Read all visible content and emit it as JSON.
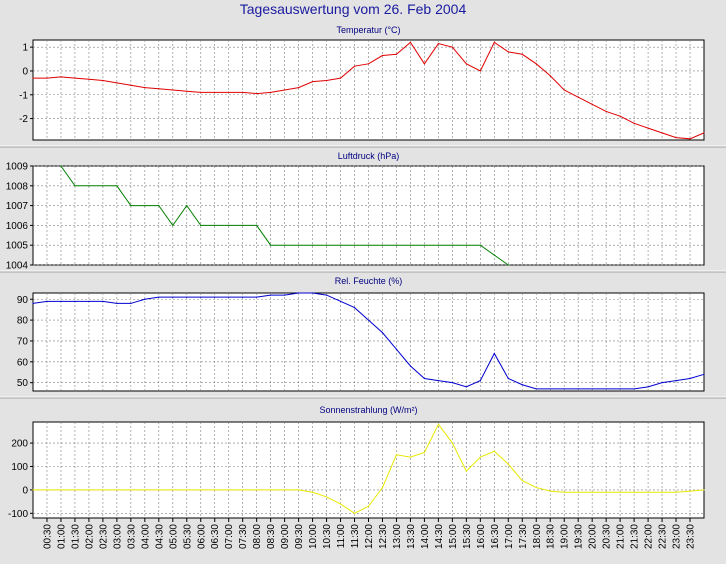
{
  "page_title": "Tagesauswertung vom 26. Feb 2004",
  "colors": {
    "background": "#e3e3e3",
    "plot_background": "#ffffff",
    "grid": "#808080",
    "title_color": "#1a1aa0",
    "temperature": "#e00000",
    "pressure": "#008000",
    "humidity": "#0000d0",
    "solar": "#e8e800"
  },
  "x_ticks": [
    "00:30",
    "01:00",
    "01:30",
    "02:00",
    "02:30",
    "03:00",
    "03:30",
    "04:00",
    "04:30",
    "05:00",
    "05:30",
    "06:00",
    "06:30",
    "07:00",
    "07:30",
    "08:00",
    "08:30",
    "09:00",
    "09:30",
    "10:00",
    "10:30",
    "11:00",
    "11:30",
    "12:00",
    "12:30",
    "13:00",
    "13:30",
    "14:00",
    "14:30",
    "15:00",
    "15:30",
    "16:00",
    "16:30",
    "17:00",
    "17:30",
    "18:00",
    "18:30",
    "19:00",
    "19:30",
    "20:00",
    "20:30",
    "21:00",
    "21:30",
    "22:00",
    "22:30",
    "23:00",
    "23:30"
  ],
  "chart_data": [
    {
      "type": "line",
      "title": "Temperatur (°C)",
      "color": "#e00000",
      "ylim": [
        -2.9,
        1.3
      ],
      "yticks": [
        -2,
        -1,
        0,
        1
      ],
      "x": [
        "00:00",
        "00:30",
        "01:00",
        "01:30",
        "02:00",
        "02:30",
        "03:00",
        "03:30",
        "04:00",
        "04:30",
        "05:00",
        "05:30",
        "06:00",
        "06:30",
        "07:00",
        "07:30",
        "08:00",
        "08:30",
        "09:00",
        "09:30",
        "10:00",
        "10:30",
        "11:00",
        "11:30",
        "12:00",
        "12:30",
        "13:00",
        "13:30",
        "14:00",
        "14:30",
        "15:00",
        "15:30",
        "16:00",
        "16:30",
        "17:00",
        "17:30",
        "18:00",
        "18:30",
        "19:00",
        "19:30",
        "20:00",
        "20:30",
        "21:00",
        "21:30",
        "22:00",
        "22:30",
        "23:00",
        "23:30",
        "24:00"
      ],
      "values": [
        -0.3,
        -0.3,
        -0.25,
        -0.3,
        -0.35,
        -0.4,
        -0.5,
        -0.6,
        -0.7,
        -0.75,
        -0.8,
        -0.85,
        -0.9,
        -0.9,
        -0.9,
        -0.9,
        -0.95,
        -0.9,
        -0.8,
        -0.7,
        -0.45,
        -0.4,
        -0.3,
        0.2,
        0.3,
        0.65,
        0.7,
        1.2,
        0.3,
        1.15,
        1.0,
        0.3,
        0.0,
        1.2,
        0.8,
        0.7,
        0.3,
        -0.2,
        -0.8,
        -1.1,
        -1.4,
        -1.7,
        -1.9,
        -2.2,
        -2.4,
        -2.6,
        -2.8,
        -2.85,
        -2.6
      ]
    },
    {
      "type": "line",
      "title": "Luftdruck (hPa)",
      "color": "#008000",
      "ylim": [
        1004,
        1009
      ],
      "yticks": [
        1004,
        1005,
        1006,
        1007,
        1008,
        1009
      ],
      "x": [
        "01:00",
        "01:30",
        "02:00",
        "02:30",
        "03:00",
        "03:30",
        "04:00",
        "04:30",
        "05:00",
        "05:30",
        "06:00",
        "06:30",
        "07:00",
        "07:30",
        "08:00",
        "08:30",
        "09:00",
        "09:30",
        "10:00",
        "10:30",
        "11:00",
        "11:30",
        "12:00",
        "12:30",
        "13:00",
        "13:30",
        "14:00",
        "14:30",
        "15:00",
        "15:30",
        "16:00",
        "16:30",
        "17:00"
      ],
      "values": [
        1009,
        1008,
        1008,
        1008,
        1008,
        1007,
        1007,
        1007,
        1006,
        1007,
        1006,
        1006,
        1006,
        1006,
        1006,
        1005,
        1005,
        1005,
        1005,
        1005,
        1005,
        1005,
        1005,
        1005,
        1005,
        1005,
        1005,
        1005,
        1005,
        1005,
        1005,
        1004.5,
        1004
      ]
    },
    {
      "type": "line",
      "title": "Rel. Feuchte (%)",
      "color": "#0000d0",
      "ylim": [
        46,
        93
      ],
      "yticks": [
        50,
        60,
        70,
        80,
        90
      ],
      "x": [
        "00:00",
        "00:30",
        "01:00",
        "01:30",
        "02:00",
        "02:30",
        "03:00",
        "03:30",
        "04:00",
        "04:30",
        "05:00",
        "05:30",
        "06:00",
        "06:30",
        "07:00",
        "07:30",
        "08:00",
        "08:30",
        "09:00",
        "09:30",
        "10:00",
        "10:30",
        "11:00",
        "11:30",
        "12:00",
        "12:30",
        "13:00",
        "13:30",
        "14:00",
        "14:30",
        "15:00",
        "15:30",
        "16:00",
        "16:30",
        "17:00",
        "17:30",
        "18:00",
        "18:30",
        "19:00",
        "19:30",
        "20:00",
        "20:30",
        "21:00",
        "21:30",
        "22:00",
        "22:30",
        "23:00",
        "23:30",
        "24:00"
      ],
      "values": [
        88,
        89,
        89,
        89,
        89,
        89,
        88,
        88,
        90,
        91,
        91,
        91,
        91,
        91,
        91,
        91,
        91,
        92,
        92,
        93,
        93,
        92,
        89,
        86,
        80,
        74,
        66,
        58,
        52,
        51,
        50,
        48,
        51,
        64,
        52,
        49,
        47,
        47,
        47,
        47,
        47,
        47,
        47,
        47,
        48,
        50,
        51,
        52,
        54
      ]
    },
    {
      "type": "line",
      "title": "Sonnenstrahlung (W/m²)",
      "color": "#e8e800",
      "ylim": [
        -120,
        290
      ],
      "yticks": [
        -100,
        0,
        100,
        200
      ],
      "x": [
        "00:00",
        "00:30",
        "01:00",
        "01:30",
        "02:00",
        "02:30",
        "03:00",
        "03:30",
        "04:00",
        "04:30",
        "05:00",
        "05:30",
        "06:00",
        "06:30",
        "07:00",
        "07:30",
        "08:00",
        "08:30",
        "09:00",
        "09:30",
        "10:00",
        "10:30",
        "11:00",
        "11:30",
        "12:00",
        "12:30",
        "13:00",
        "13:30",
        "14:00",
        "14:30",
        "15:00",
        "15:30",
        "16:00",
        "16:30",
        "17:00",
        "17:30",
        "18:00",
        "18:30",
        "19:00",
        "19:30",
        "20:00",
        "20:30",
        "21:00",
        "21:30",
        "22:00",
        "22:30",
        "23:00",
        "23:30",
        "24:00"
      ],
      "values": [
        0,
        0,
        0,
        0,
        0,
        0,
        0,
        0,
        0,
        0,
        0,
        0,
        0,
        0,
        0,
        0,
        0,
        0,
        0,
        0,
        -10,
        -30,
        -60,
        -100,
        -70,
        10,
        150,
        140,
        160,
        280,
        200,
        80,
        140,
        165,
        110,
        40,
        10,
        -5,
        -10,
        -10,
        -10,
        -10,
        -10,
        -10,
        -10,
        -10,
        -10,
        -5,
        0
      ]
    }
  ]
}
